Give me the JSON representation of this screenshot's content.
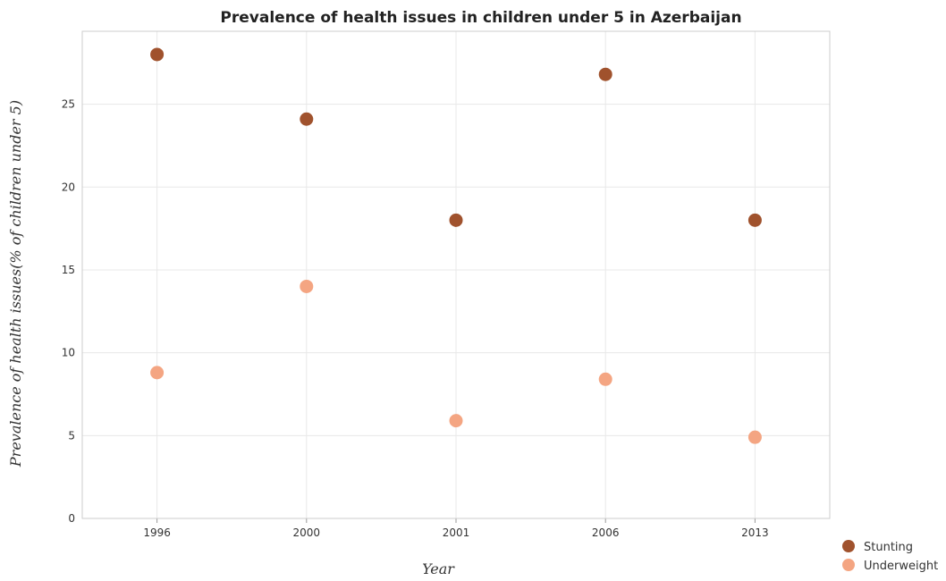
{
  "colors": {
    "stunting": "#a0522d",
    "underweight": "#f4a582",
    "grid": "#e8e8e8",
    "axis": "#cccccc"
  },
  "chart_data": {
    "type": "scatter",
    "title": "Prevalence of health issues in children under 5 in Azerbaijan",
    "xlabel": "Year",
    "ylabel": "Prevalence of health issues(% of children under 5)",
    "categories": [
      "1996",
      "2000",
      "2001",
      "2006",
      "2013"
    ],
    "yticks": [
      "0",
      "5",
      "10",
      "15",
      "20",
      "25"
    ],
    "ylim": [
      0,
      29.4
    ],
    "grid": true,
    "legend_position": "bottom-right",
    "series": [
      {
        "name": "Stunting",
        "color_key": "stunting",
        "values": [
          28.0,
          24.1,
          18.0,
          26.8,
          18.0
        ]
      },
      {
        "name": "Underweight",
        "color_key": "underweight",
        "values": [
          8.8,
          14.0,
          5.9,
          8.4,
          4.9
        ]
      }
    ]
  }
}
